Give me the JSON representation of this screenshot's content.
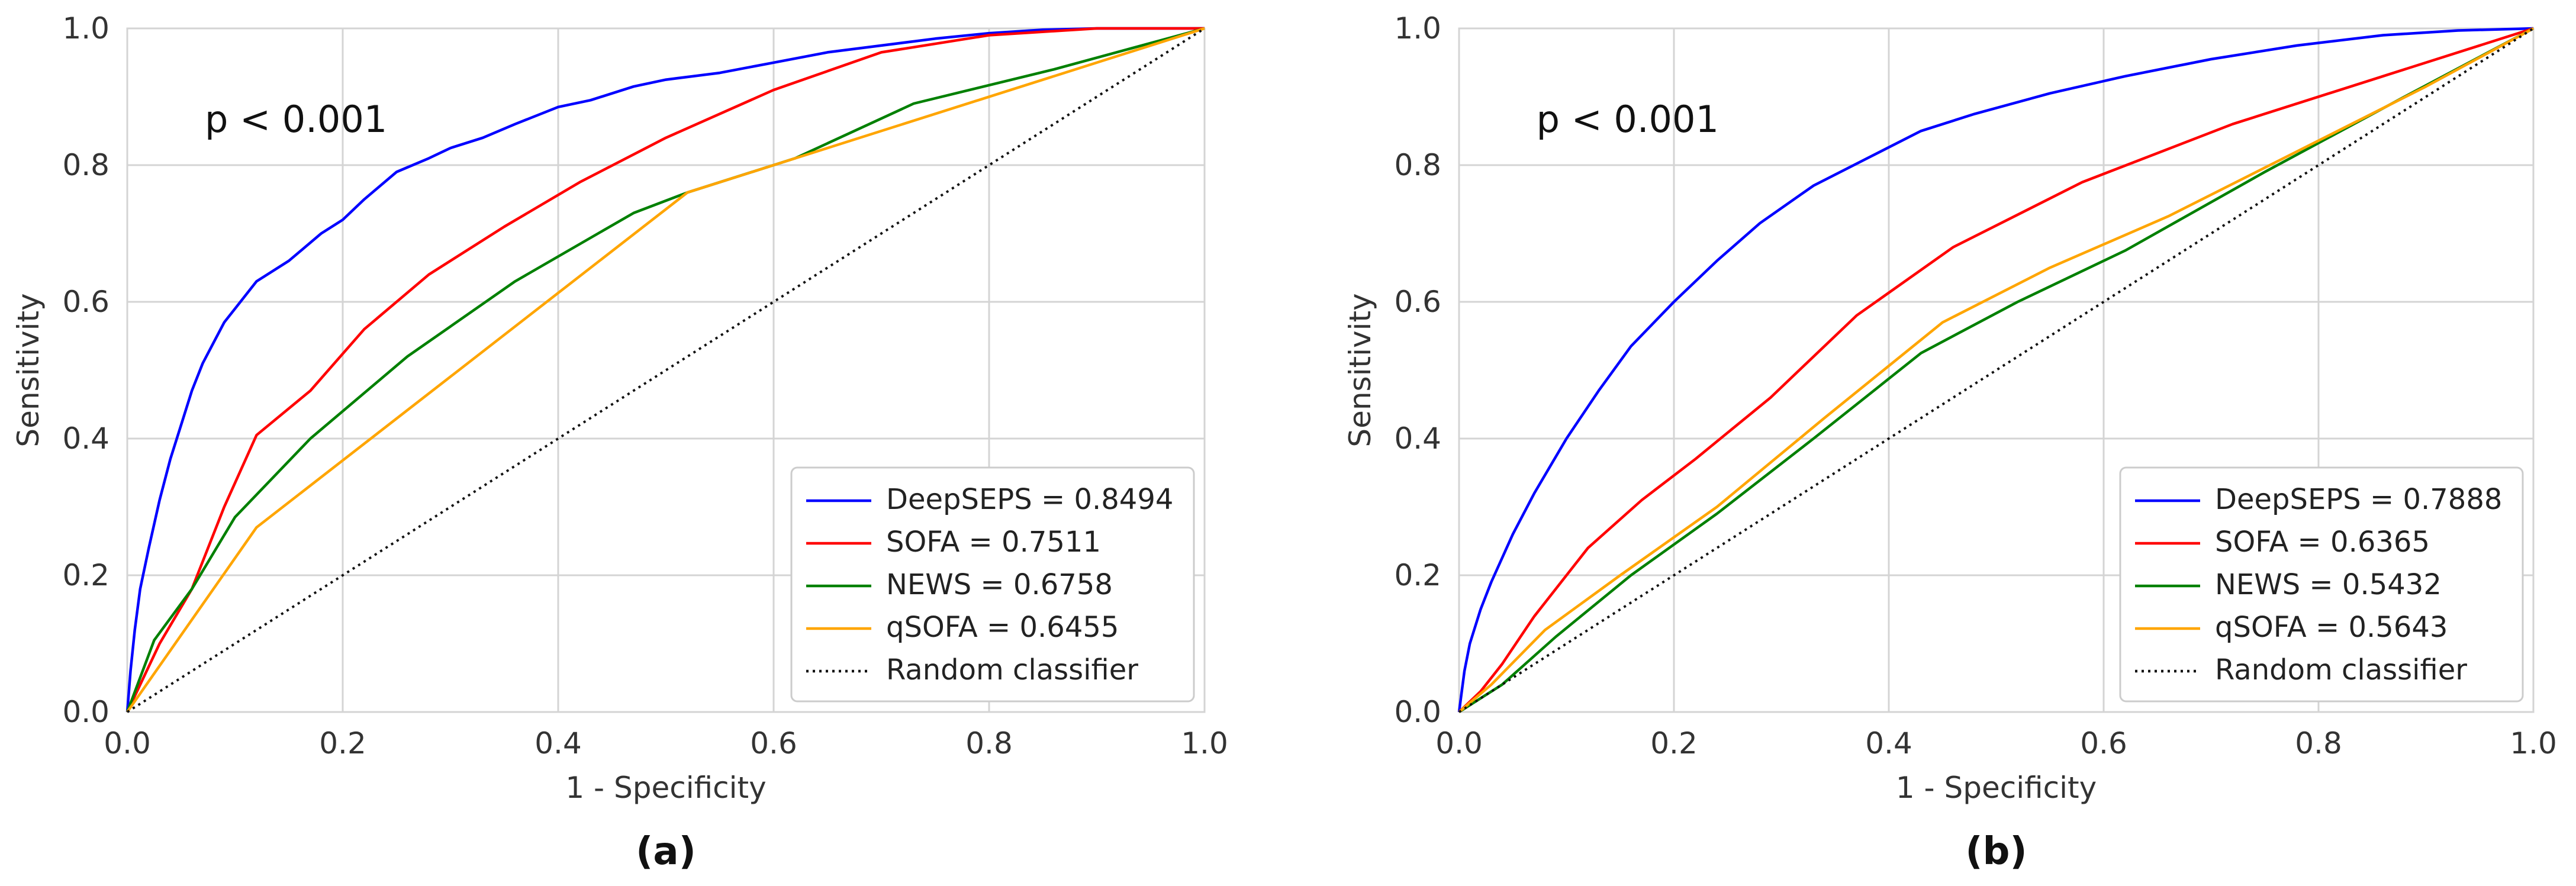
{
  "chart_data": [
    {
      "type": "line",
      "caption": "(a)",
      "annotation": "p < 0.001",
      "xlabel": "1 - Specificity",
      "ylabel": "Sensitivity",
      "xlim": [
        0,
        1
      ],
      "ylim": [
        0,
        1
      ],
      "xticks": [
        "0.0",
        "0.2",
        "0.4",
        "0.6",
        "0.8",
        "1.0"
      ],
      "yticks": [
        "0.0",
        "0.2",
        "0.4",
        "0.6",
        "0.8",
        "1.0"
      ],
      "grid": true,
      "legend_position": "bottom-right",
      "series": [
        {
          "name": "DeepSEPS = 0.8494",
          "color": "#0000ff",
          "style": "solid",
          "x": [
            0,
            0.003,
            0.007,
            0.012,
            0.02,
            0.03,
            0.04,
            0.05,
            0.06,
            0.07,
            0.08,
            0.09,
            0.1,
            0.12,
            0.15,
            0.18,
            0.2,
            0.22,
            0.25,
            0.28,
            0.3,
            0.33,
            0.36,
            0.4,
            0.43,
            0.47,
            0.5,
            0.55,
            0.6,
            0.65,
            0.7,
            0.75,
            0.8,
            0.85,
            0.9,
            1.0
          ],
          "y": [
            0,
            0.06,
            0.12,
            0.18,
            0.24,
            0.31,
            0.37,
            0.42,
            0.47,
            0.51,
            0.54,
            0.57,
            0.59,
            0.63,
            0.66,
            0.7,
            0.72,
            0.75,
            0.79,
            0.81,
            0.825,
            0.84,
            0.86,
            0.885,
            0.895,
            0.915,
            0.925,
            0.935,
            0.95,
            0.965,
            0.975,
            0.985,
            0.993,
            0.998,
            1.0,
            1.0
          ]
        },
        {
          "name": "SOFA = 0.7511",
          "color": "#ff0000",
          "style": "solid",
          "x": [
            0,
            0.03,
            0.06,
            0.09,
            0.12,
            0.17,
            0.22,
            0.28,
            0.35,
            0.42,
            0.5,
            0.6,
            0.7,
            0.8,
            0.9,
            1.0
          ],
          "y": [
            0,
            0.1,
            0.18,
            0.3,
            0.405,
            0.47,
            0.56,
            0.64,
            0.71,
            0.775,
            0.84,
            0.91,
            0.965,
            0.99,
            1.0,
            1.0
          ]
        },
        {
          "name": "NEWS = 0.6758",
          "color": "#008000",
          "style": "solid",
          "x": [
            0,
            0.025,
            0.06,
            0.1,
            0.17,
            0.26,
            0.36,
            0.47,
            0.52,
            0.62,
            0.73,
            0.86,
            1.0
          ],
          "y": [
            0,
            0.105,
            0.18,
            0.285,
            0.4,
            0.52,
            0.63,
            0.73,
            0.76,
            0.81,
            0.89,
            0.94,
            1.0
          ]
        },
        {
          "name": "qSOFA = 0.6455",
          "color": "#ffa500",
          "style": "solid",
          "x": [
            0,
            0.12,
            0.52,
            0.6,
            1.0
          ],
          "y": [
            0,
            0.27,
            0.76,
            0.8,
            1.0
          ]
        },
        {
          "name": "Random classifier",
          "color": "#111111",
          "style": "dotted",
          "x": [
            0,
            1
          ],
          "y": [
            0,
            1
          ]
        }
      ]
    },
    {
      "type": "line",
      "caption": "(b)",
      "annotation": "p < 0.001",
      "xlabel": "1 - Specificity",
      "ylabel": "Sensitivity",
      "xlim": [
        0,
        1
      ],
      "ylim": [
        0,
        1
      ],
      "xticks": [
        "0.0",
        "0.2",
        "0.4",
        "0.6",
        "0.8",
        "1.0"
      ],
      "yticks": [
        "0.0",
        "0.2",
        "0.4",
        "0.6",
        "0.8",
        "1.0"
      ],
      "grid": true,
      "legend_position": "bottom-right",
      "series": [
        {
          "name": "DeepSEPS = 0.7888",
          "color": "#0000ff",
          "style": "solid",
          "x": [
            0,
            0.005,
            0.01,
            0.02,
            0.03,
            0.05,
            0.07,
            0.1,
            0.13,
            0.16,
            0.2,
            0.24,
            0.28,
            0.33,
            0.38,
            0.43,
            0.48,
            0.55,
            0.62,
            0.7,
            0.78,
            0.86,
            0.93,
            1.0
          ],
          "y": [
            0,
            0.06,
            0.1,
            0.15,
            0.19,
            0.26,
            0.32,
            0.4,
            0.47,
            0.535,
            0.6,
            0.66,
            0.715,
            0.77,
            0.81,
            0.85,
            0.875,
            0.905,
            0.93,
            0.955,
            0.975,
            0.99,
            0.997,
            1.0
          ]
        },
        {
          "name": "SOFA = 0.6365",
          "color": "#ff0000",
          "style": "solid",
          "x": [
            0,
            0.02,
            0.04,
            0.07,
            0.12,
            0.17,
            0.22,
            0.29,
            0.37,
            0.46,
            0.58,
            0.72,
            0.86,
            1.0
          ],
          "y": [
            0,
            0.03,
            0.07,
            0.14,
            0.24,
            0.31,
            0.37,
            0.46,
            0.58,
            0.68,
            0.775,
            0.86,
            0.93,
            1.0
          ]
        },
        {
          "name": "NEWS = 0.5432",
          "color": "#008000",
          "style": "solid",
          "x": [
            0,
            0.04,
            0.09,
            0.16,
            0.24,
            0.33,
            0.43,
            0.52,
            0.62,
            0.75,
            0.88,
            1.0
          ],
          "y": [
            0,
            0.04,
            0.11,
            0.2,
            0.29,
            0.4,
            0.525,
            0.6,
            0.675,
            0.79,
            0.9,
            1.0
          ]
        },
        {
          "name": "qSOFA = 0.5643",
          "color": "#ffa500",
          "style": "solid",
          "x": [
            0,
            0.03,
            0.08,
            0.15,
            0.24,
            0.34,
            0.45,
            0.55,
            0.66,
            0.78,
            0.9,
            1.0
          ],
          "y": [
            0,
            0.04,
            0.12,
            0.2,
            0.3,
            0.43,
            0.57,
            0.65,
            0.725,
            0.82,
            0.915,
            1.0
          ]
        },
        {
          "name": "Random classifier",
          "color": "#111111",
          "style": "dotted",
          "x": [
            0,
            1
          ],
          "y": [
            0,
            1
          ]
        }
      ]
    }
  ]
}
